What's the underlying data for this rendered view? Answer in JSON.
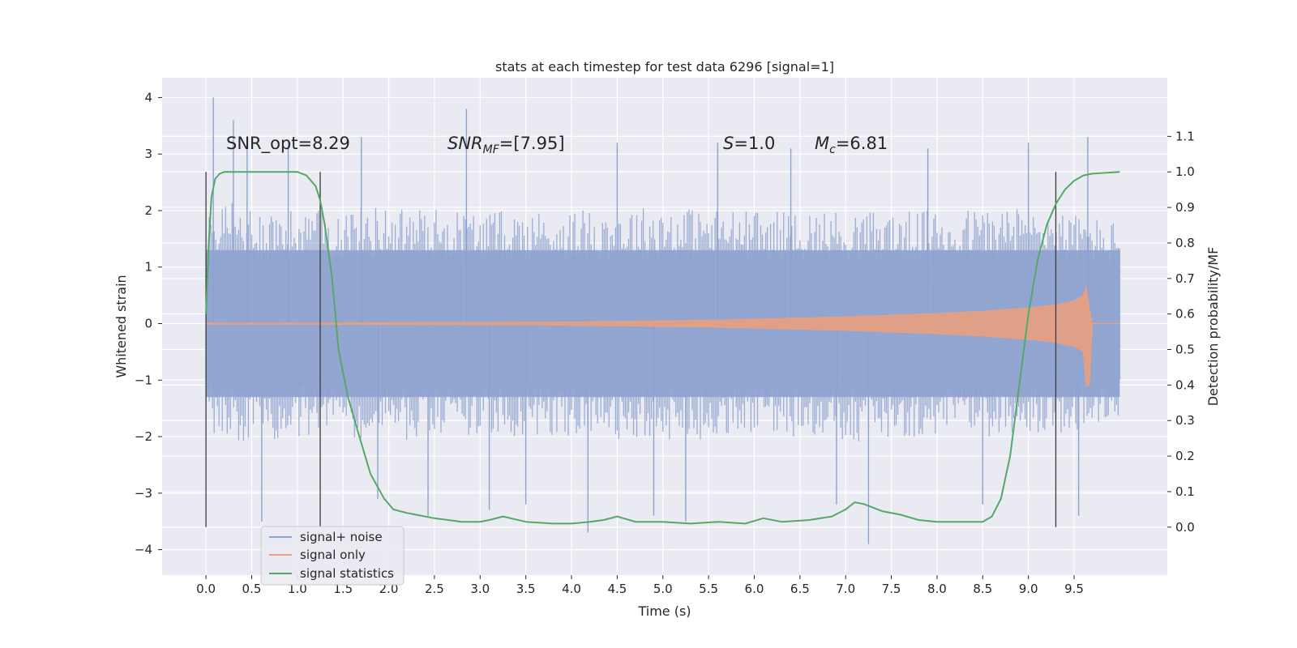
{
  "chart_data": {
    "type": "line",
    "title": "stats at each timestep for test data 6296 [signal=1]",
    "xlabel": "Time (s)",
    "ylabel": "Whitened strain",
    "y2label": "Detection probability/MF",
    "xlim": [
      -0.48,
      10.52
    ],
    "ylim": [
      -4.45,
      4.35
    ],
    "y2lim": [
      -0.135,
      1.265
    ],
    "x_ticks": [
      "0.0",
      "0.5",
      "1.0",
      "1.5",
      "2.0",
      "2.5",
      "3.0",
      "3.5",
      "4.0",
      "4.5",
      "5.0",
      "5.5",
      "6.0",
      "6.5",
      "7.0",
      "7.5",
      "8.0",
      "8.5",
      "9.0",
      "9.5"
    ],
    "y_ticks": [
      "−4",
      "−3",
      "−2",
      "−1",
      "0",
      "1",
      "2",
      "3",
      "4"
    ],
    "y2_ticks": [
      "0.0",
      "0.1",
      "0.2",
      "0.3",
      "0.4",
      "0.5",
      "0.6",
      "0.7",
      "0.8",
      "0.9",
      "1.0",
      "1.1"
    ],
    "grid": true,
    "legend_position": "lower-left",
    "annotations": {
      "snr_opt": "SNR_opt=8.29",
      "snr_mf_base": "SNR",
      "snr_mf_sub": "MF",
      "snr_mf_rest": "=[7.95]",
      "s_var": "S",
      "s_rest": "=1.0",
      "mc_base": "M",
      "mc_sub": "c",
      "mc_rest": "=6.81"
    },
    "vertical_lines_x": [
      0.0,
      1.25,
      9.3
    ],
    "vertical_lines_range": [
      0.0,
      1.0
    ],
    "series": [
      {
        "name": "signal+ noise",
        "color": "#8ea2cf",
        "x_range": [
          0.0,
          10.0
        ],
        "envelope_upper": [
          [
            0.0,
            1.9
          ],
          [
            0.1,
            2.2
          ],
          [
            0.5,
            2.1
          ],
          [
            1.0,
            2.0
          ],
          [
            2.0,
            2.1
          ],
          [
            3.0,
            2.0
          ],
          [
            4.0,
            2.0
          ],
          [
            5.0,
            2.1
          ],
          [
            6.0,
            2.0
          ],
          [
            7.0,
            2.0
          ],
          [
            8.0,
            2.0
          ],
          [
            9.0,
            2.1
          ],
          [
            10.0,
            1.8
          ]
        ],
        "envelope_lower": [
          [
            0.0,
            -1.6
          ],
          [
            0.1,
            -2.0
          ],
          [
            0.5,
            -2.1
          ],
          [
            1.0,
            -2.0
          ],
          [
            2.0,
            -2.1
          ],
          [
            3.0,
            -2.0
          ],
          [
            4.0,
            -2.0
          ],
          [
            5.0,
            -2.1
          ],
          [
            6.0,
            -2.0
          ],
          [
            7.0,
            -2.1
          ],
          [
            8.0,
            -2.0
          ],
          [
            9.0,
            -2.0
          ],
          [
            10.0,
            -1.8
          ]
        ],
        "spikes": [
          [
            0.08,
            4.0
          ],
          [
            0.3,
            3.6
          ],
          [
            0.45,
            3.3
          ],
          [
            0.61,
            -3.5
          ],
          [
            0.9,
            3.2
          ],
          [
            1.7,
            3.3
          ],
          [
            1.88,
            -3.1
          ],
          [
            2.43,
            -3.4
          ],
          [
            2.85,
            3.8
          ],
          [
            3.1,
            -3.3
          ],
          [
            3.5,
            -3.2
          ],
          [
            4.18,
            -3.7
          ],
          [
            4.5,
            3.2
          ],
          [
            4.9,
            -3.4
          ],
          [
            5.25,
            -3.5
          ],
          [
            5.6,
            3.2
          ],
          [
            6.4,
            3.1
          ],
          [
            6.9,
            -3.2
          ],
          [
            7.25,
            -3.9
          ],
          [
            7.9,
            3.1
          ],
          [
            8.5,
            -3.2
          ],
          [
            9.0,
            3.2
          ],
          [
            9.55,
            -3.4
          ],
          [
            9.65,
            3.3
          ]
        ]
      },
      {
        "name": "signal only",
        "color": "#e8a07e",
        "envelope": [
          [
            0.0,
            0.01
          ],
          [
            1.0,
            0.01
          ],
          [
            2.0,
            0.015
          ],
          [
            3.0,
            0.02
          ],
          [
            4.0,
            0.03
          ],
          [
            5.0,
            0.05
          ],
          [
            5.5,
            0.06
          ],
          [
            6.0,
            0.08
          ],
          [
            7.0,
            0.12
          ],
          [
            8.0,
            0.18
          ],
          [
            8.5,
            0.22
          ],
          [
            9.0,
            0.28
          ],
          [
            9.3,
            0.33
          ],
          [
            9.5,
            0.4
          ],
          [
            9.6,
            0.5
          ],
          [
            9.66,
            0.8
          ],
          [
            9.67,
            0.0
          ],
          [
            10.0,
            0.0
          ]
        ],
        "min_at_end": -1.1
      },
      {
        "name": "signal statistics",
        "color": "#55a868",
        "axis": "right",
        "x": [
          0.0,
          0.03,
          0.06,
          0.1,
          0.15,
          0.2,
          0.3,
          0.5,
          0.8,
          1.0,
          1.1,
          1.2,
          1.25,
          1.3,
          1.38,
          1.45,
          1.55,
          1.65,
          1.8,
          1.95,
          2.05,
          2.2,
          2.5,
          2.8,
          3.0,
          3.1,
          3.25,
          3.5,
          3.8,
          4.0,
          4.2,
          4.35,
          4.5,
          4.7,
          5.0,
          5.3,
          5.6,
          5.9,
          6.1,
          6.3,
          6.6,
          6.85,
          7.0,
          7.1,
          7.2,
          7.4,
          7.6,
          7.8,
          8.0,
          8.5,
          8.6,
          8.7,
          8.8,
          8.9,
          9.0,
          9.1,
          9.2,
          9.3,
          9.4,
          9.5,
          9.6,
          9.7,
          10.0
        ],
        "y": [
          0.6,
          0.8,
          0.93,
          0.98,
          0.995,
          1.0,
          1.0,
          1.0,
          1.0,
          1.0,
          0.99,
          0.96,
          0.92,
          0.85,
          0.7,
          0.5,
          0.37,
          0.28,
          0.15,
          0.08,
          0.05,
          0.04,
          0.025,
          0.015,
          0.015,
          0.02,
          0.03,
          0.015,
          0.01,
          0.01,
          0.015,
          0.02,
          0.03,
          0.015,
          0.015,
          0.01,
          0.015,
          0.01,
          0.025,
          0.015,
          0.02,
          0.03,
          0.05,
          0.07,
          0.065,
          0.045,
          0.035,
          0.02,
          0.015,
          0.015,
          0.03,
          0.08,
          0.2,
          0.4,
          0.6,
          0.75,
          0.85,
          0.91,
          0.95,
          0.975,
          0.99,
          0.995,
          1.0
        ]
      }
    ]
  }
}
